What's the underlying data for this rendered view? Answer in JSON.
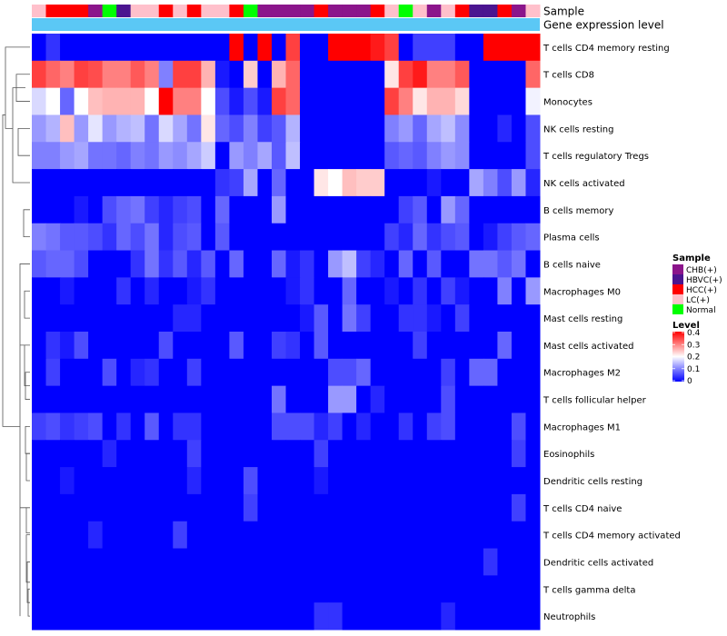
{
  "chart_data": {
    "type": "heatmap",
    "annotation_labels": [
      "Sample",
      "Gene expression level"
    ],
    "sample_legend": {
      "title": "Sample",
      "entries": [
        {
          "label": "CHB(+)",
          "color": "#8B158B"
        },
        {
          "label": "HBVC(+)",
          "color": "#4B1590"
        },
        {
          "label": "HCC(+)",
          "color": "#FF0000"
        },
        {
          "label": "LC(+)",
          "color": "#FFC0CB"
        },
        {
          "label": "Normal",
          "color": "#00FF00"
        }
      ]
    },
    "level_legend": {
      "title": "Level",
      "ticks": [
        "0.4",
        "0.3",
        "0.2",
        "0.1",
        "0"
      ],
      "tick_values": [
        0.4,
        0.3,
        0.2,
        0.1,
        0
      ],
      "range": [
        0,
        0.4
      ],
      "colors": {
        "low": "#0000FF",
        "mid": "#FFFFFF",
        "high": "#FF0000"
      }
    },
    "annotation_bar_color": "#5BC8F5",
    "sample_groups": [
      "LC(+)",
      "HCC(+)",
      "HCC(+)",
      "HCC(+)",
      "CHB(+)",
      "Normal",
      "HBVC(+)",
      "LC(+)",
      "LC(+)",
      "HCC(+)",
      "LC(+)",
      "HCC(+)",
      "LC(+)",
      "LC(+)",
      "HCC(+)",
      "Normal",
      "CHB(+)",
      "CHB(+)",
      "CHB(+)",
      "CHB(+)",
      "HCC(+)",
      "CHB(+)",
      "CHB(+)",
      "CHB(+)",
      "HCC(+)",
      "LC(+)",
      "Normal",
      "LC(+)",
      "CHB(+)",
      "LC(+)",
      "HCC(+)",
      "HBVC(+)",
      "HBVC(+)",
      "HCC(+)",
      "CHB(+)",
      "LC(+)"
    ],
    "rows": [
      {
        "label": "T cells CD4 memory resting",
        "values": [
          0.0,
          0.04,
          0.0,
          0.0,
          0.0,
          0.0,
          0.0,
          0.0,
          0.0,
          0.0,
          0.0,
          0.0,
          0.0,
          0.0,
          0.4,
          0.0,
          0.4,
          0.0,
          0.35,
          0.0,
          0.0,
          0.4,
          0.4,
          0.4,
          0.38,
          0.35,
          0.0,
          0.05,
          0.05,
          0.05,
          0.0,
          0.0,
          0.4,
          0.4,
          0.4,
          0.4
        ]
      },
      {
        "label": "T cells CD8",
        "values": [
          0.35,
          0.32,
          0.3,
          0.35,
          0.34,
          0.3,
          0.3,
          0.33,
          0.3,
          0.1,
          0.35,
          0.35,
          0.26,
          0.02,
          0.0,
          0.24,
          0.0,
          0.26,
          0.32,
          0.0,
          0.0,
          0.0,
          0.0,
          0.0,
          0.0,
          0.22,
          0.35,
          0.38,
          0.3,
          0.3,
          0.33,
          0.0,
          0.0,
          0.0,
          0.0,
          0.32
        ]
      },
      {
        "label": "Monocytes",
        "values": [
          0.17,
          0.2,
          0.08,
          0.2,
          0.25,
          0.26,
          0.26,
          0.26,
          0.2,
          0.4,
          0.3,
          0.3,
          0.2,
          0.06,
          0.02,
          0.06,
          0.02,
          0.35,
          0.32,
          0.0,
          0.0,
          0.0,
          0.0,
          0.0,
          0.0,
          0.35,
          0.3,
          0.22,
          0.26,
          0.26,
          0.23,
          0.0,
          0.0,
          0.0,
          0.0,
          0.19
        ]
      },
      {
        "label": "NK cells resting",
        "values": [
          0.12,
          0.14,
          0.25,
          0.12,
          0.18,
          0.12,
          0.14,
          0.15,
          0.09,
          0.17,
          0.13,
          0.09,
          0.22,
          0.08,
          0.06,
          0.1,
          0.05,
          0.07,
          0.14,
          0.0,
          0.0,
          0.0,
          0.0,
          0.0,
          0.0,
          0.1,
          0.12,
          0.08,
          0.13,
          0.15,
          0.11,
          0.0,
          0.0,
          0.03,
          0.0,
          0.06
        ]
      },
      {
        "label": "T cells regulatory  Tregs",
        "values": [
          0.1,
          0.1,
          0.12,
          0.13,
          0.09,
          0.09,
          0.08,
          0.1,
          0.09,
          0.12,
          0.11,
          0.13,
          0.16,
          0.0,
          0.12,
          0.1,
          0.13,
          0.07,
          0.15,
          0.0,
          0.0,
          0.0,
          0.0,
          0.0,
          0.0,
          0.07,
          0.08,
          0.07,
          0.1,
          0.12,
          0.11,
          0.0,
          0.0,
          0.0,
          0.0,
          0.06
        ]
      },
      {
        "label": "NK cells activated",
        "values": [
          0.0,
          0.0,
          0.0,
          0.0,
          0.0,
          0.0,
          0.0,
          0.0,
          0.0,
          0.0,
          0.0,
          0.0,
          0.0,
          0.04,
          0.05,
          0.13,
          0.0,
          0.08,
          0.0,
          0.0,
          0.22,
          0.2,
          0.25,
          0.24,
          0.24,
          0.0,
          0.0,
          0.0,
          0.02,
          0.0,
          0.0,
          0.13,
          0.1,
          0.06,
          0.12,
          0.03
        ]
      },
      {
        "label": "B cells memory",
        "values": [
          0.0,
          0.0,
          0.0,
          0.02,
          0.0,
          0.06,
          0.08,
          0.09,
          0.05,
          0.03,
          0.05,
          0.06,
          0.0,
          0.08,
          0.0,
          0.0,
          0.0,
          0.12,
          0.0,
          0.0,
          0.0,
          0.0,
          0.0,
          0.0,
          0.0,
          0.0,
          0.05,
          0.07,
          0.0,
          0.12,
          0.08,
          0.0,
          0.0,
          0.0,
          0.0,
          0.0
        ]
      },
      {
        "label": "Plasma cells",
        "values": [
          0.1,
          0.09,
          0.07,
          0.07,
          0.06,
          0.04,
          0.08,
          0.06,
          0.09,
          0.03,
          0.06,
          0.07,
          0.0,
          0.07,
          0.0,
          0.0,
          0.0,
          0.0,
          0.0,
          0.0,
          0.0,
          0.0,
          0.0,
          0.0,
          0.0,
          0.05,
          0.03,
          0.08,
          0.04,
          0.06,
          0.07,
          0.0,
          0.02,
          0.05,
          0.07,
          0.08
        ]
      },
      {
        "label": "B cells naive",
        "values": [
          0.07,
          0.08,
          0.08,
          0.06,
          0.0,
          0.0,
          0.0,
          0.04,
          0.09,
          0.04,
          0.07,
          0.03,
          0.07,
          0.0,
          0.08,
          0.0,
          0.0,
          0.08,
          0.02,
          0.04,
          0.0,
          0.12,
          0.15,
          0.05,
          0.03,
          0.0,
          0.08,
          0.0,
          0.07,
          0.0,
          0.0,
          0.09,
          0.09,
          0.07,
          0.09,
          0.0
        ]
      },
      {
        "label": "Macrophages M0",
        "values": [
          0.0,
          0.0,
          0.02,
          0.0,
          0.0,
          0.0,
          0.04,
          0.0,
          0.03,
          0.0,
          0.0,
          0.02,
          0.04,
          0.0,
          0.0,
          0.0,
          0.0,
          0.0,
          0.02,
          0.04,
          0.0,
          0.0,
          0.08,
          0.0,
          0.0,
          0.02,
          0.0,
          0.04,
          0.0,
          0.05,
          0.02,
          0.0,
          0.0,
          0.1,
          0.0,
          0.12
        ]
      },
      {
        "label": "Mast cells resting",
        "values": [
          0.0,
          0.0,
          0.0,
          0.0,
          0.0,
          0.0,
          0.0,
          0.0,
          0.0,
          0.0,
          0.03,
          0.03,
          0.0,
          0.0,
          0.0,
          0.0,
          0.0,
          0.0,
          0.0,
          0.02,
          0.07,
          0.0,
          0.09,
          0.05,
          0.0,
          0.0,
          0.04,
          0.04,
          0.02,
          0.0,
          0.05,
          0.0,
          0.0,
          0.0,
          0.0,
          0.0
        ]
      },
      {
        "label": "Mast cells activated",
        "values": [
          0.0,
          0.04,
          0.02,
          0.06,
          0.0,
          0.0,
          0.0,
          0.0,
          0.0,
          0.06,
          0.0,
          0.0,
          0.0,
          0.0,
          0.07,
          0.0,
          0.0,
          0.05,
          0.04,
          0.0,
          0.07,
          0.0,
          0.0,
          0.0,
          0.0,
          0.0,
          0.0,
          0.05,
          0.0,
          0.0,
          0.0,
          0.0,
          0.0,
          0.08,
          0.0,
          0.0
        ]
      },
      {
        "label": "Macrophages M2",
        "values": [
          0.0,
          0.05,
          0.0,
          0.0,
          0.0,
          0.06,
          0.0,
          0.03,
          0.04,
          0.0,
          0.0,
          0.05,
          0.0,
          0.0,
          0.0,
          0.0,
          0.0,
          0.0,
          0.0,
          0.0,
          0.0,
          0.06,
          0.06,
          0.08,
          0.0,
          0.0,
          0.0,
          0.0,
          0.0,
          0.05,
          0.0,
          0.08,
          0.08,
          0.0,
          0.0,
          0.0
        ]
      },
      {
        "label": "T cells follicular helper",
        "values": [
          0.0,
          0.0,
          0.0,
          0.0,
          0.0,
          0.0,
          0.0,
          0.0,
          0.0,
          0.0,
          0.0,
          0.0,
          0.0,
          0.0,
          0.0,
          0.0,
          0.0,
          0.09,
          0.0,
          0.0,
          0.0,
          0.12,
          0.12,
          0.0,
          0.03,
          0.0,
          0.0,
          0.0,
          0.0,
          0.06,
          0.0,
          0.0,
          0.0,
          0.0,
          0.0,
          0.0
        ]
      },
      {
        "label": "Macrophages M1",
        "values": [
          0.05,
          0.06,
          0.04,
          0.05,
          0.06,
          0.0,
          0.04,
          0.0,
          0.07,
          0.0,
          0.04,
          0.04,
          0.0,
          0.0,
          0.0,
          0.0,
          0.0,
          0.06,
          0.06,
          0.06,
          0.03,
          0.05,
          0.0,
          0.03,
          0.0,
          0.0,
          0.04,
          0.0,
          0.05,
          0.06,
          0.0,
          0.0,
          0.0,
          0.0,
          0.06,
          0.0
        ]
      },
      {
        "label": "Eosinophils",
        "values": [
          0.0,
          0.0,
          0.0,
          0.0,
          0.0,
          0.03,
          0.0,
          0.0,
          0.0,
          0.0,
          0.0,
          0.05,
          0.0,
          0.0,
          0.0,
          0.0,
          0.0,
          0.0,
          0.0,
          0.0,
          0.05,
          0.0,
          0.0,
          0.0,
          0.0,
          0.0,
          0.0,
          0.0,
          0.0,
          0.0,
          0.0,
          0.0,
          0.0,
          0.0,
          0.05,
          0.0
        ]
      },
      {
        "label": "Dendritic cells resting",
        "values": [
          0.0,
          0.0,
          0.02,
          0.0,
          0.0,
          0.0,
          0.0,
          0.0,
          0.0,
          0.0,
          0.0,
          0.03,
          0.0,
          0.0,
          0.0,
          0.06,
          0.0,
          0.0,
          0.0,
          0.0,
          0.02,
          0.0,
          0.0,
          0.0,
          0.0,
          0.0,
          0.0,
          0.0,
          0.0,
          0.0,
          0.0,
          0.0,
          0.0,
          0.0,
          0.0,
          0.0
        ]
      },
      {
        "label": "T cells CD4 naive",
        "values": [
          0.0,
          0.0,
          0.0,
          0.0,
          0.0,
          0.0,
          0.0,
          0.0,
          0.0,
          0.0,
          0.0,
          0.0,
          0.0,
          0.0,
          0.0,
          0.05,
          0.0,
          0.0,
          0.0,
          0.0,
          0.0,
          0.0,
          0.0,
          0.0,
          0.0,
          0.0,
          0.0,
          0.0,
          0.0,
          0.0,
          0.0,
          0.0,
          0.0,
          0.0,
          0.05,
          0.0
        ]
      },
      {
        "label": "T cells CD4 memory activated",
        "values": [
          0.0,
          0.0,
          0.0,
          0.0,
          0.03,
          0.0,
          0.0,
          0.0,
          0.0,
          0.0,
          0.05,
          0.0,
          0.0,
          0.0,
          0.0,
          0.0,
          0.0,
          0.0,
          0.0,
          0.0,
          0.0,
          0.0,
          0.0,
          0.0,
          0.0,
          0.0,
          0.0,
          0.0,
          0.0,
          0.0,
          0.0,
          0.0,
          0.0,
          0.0,
          0.0,
          0.0
        ]
      },
      {
        "label": "Dendritic cells activated",
        "values": [
          0.0,
          0.0,
          0.0,
          0.0,
          0.0,
          0.0,
          0.0,
          0.0,
          0.0,
          0.0,
          0.0,
          0.0,
          0.0,
          0.0,
          0.0,
          0.0,
          0.0,
          0.0,
          0.0,
          0.0,
          0.0,
          0.0,
          0.0,
          0.0,
          0.0,
          0.0,
          0.0,
          0.0,
          0.0,
          0.0,
          0.0,
          0.0,
          0.04,
          0.0,
          0.0,
          0.0
        ]
      },
      {
        "label": "T cells gamma delta",
        "values": [
          0.0,
          0.0,
          0.0,
          0.0,
          0.0,
          0.0,
          0.0,
          0.0,
          0.0,
          0.0,
          0.0,
          0.0,
          0.0,
          0.0,
          0.0,
          0.0,
          0.0,
          0.0,
          0.0,
          0.0,
          0.0,
          0.0,
          0.0,
          0.0,
          0.0,
          0.0,
          0.0,
          0.0,
          0.0,
          0.0,
          0.0,
          0.0,
          0.0,
          0.0,
          0.0,
          0.0
        ]
      },
      {
        "label": "Neutrophils",
        "values": [
          0.0,
          0.0,
          0.0,
          0.0,
          0.0,
          0.0,
          0.0,
          0.0,
          0.0,
          0.0,
          0.0,
          0.0,
          0.0,
          0.0,
          0.0,
          0.0,
          0.0,
          0.0,
          0.0,
          0.0,
          0.04,
          0.04,
          0.0,
          0.0,
          0.0,
          0.0,
          0.0,
          0.0,
          0.0,
          0.03,
          0.0,
          0.0,
          0.0,
          0.0,
          0.0,
          0.0
        ]
      }
    ]
  }
}
